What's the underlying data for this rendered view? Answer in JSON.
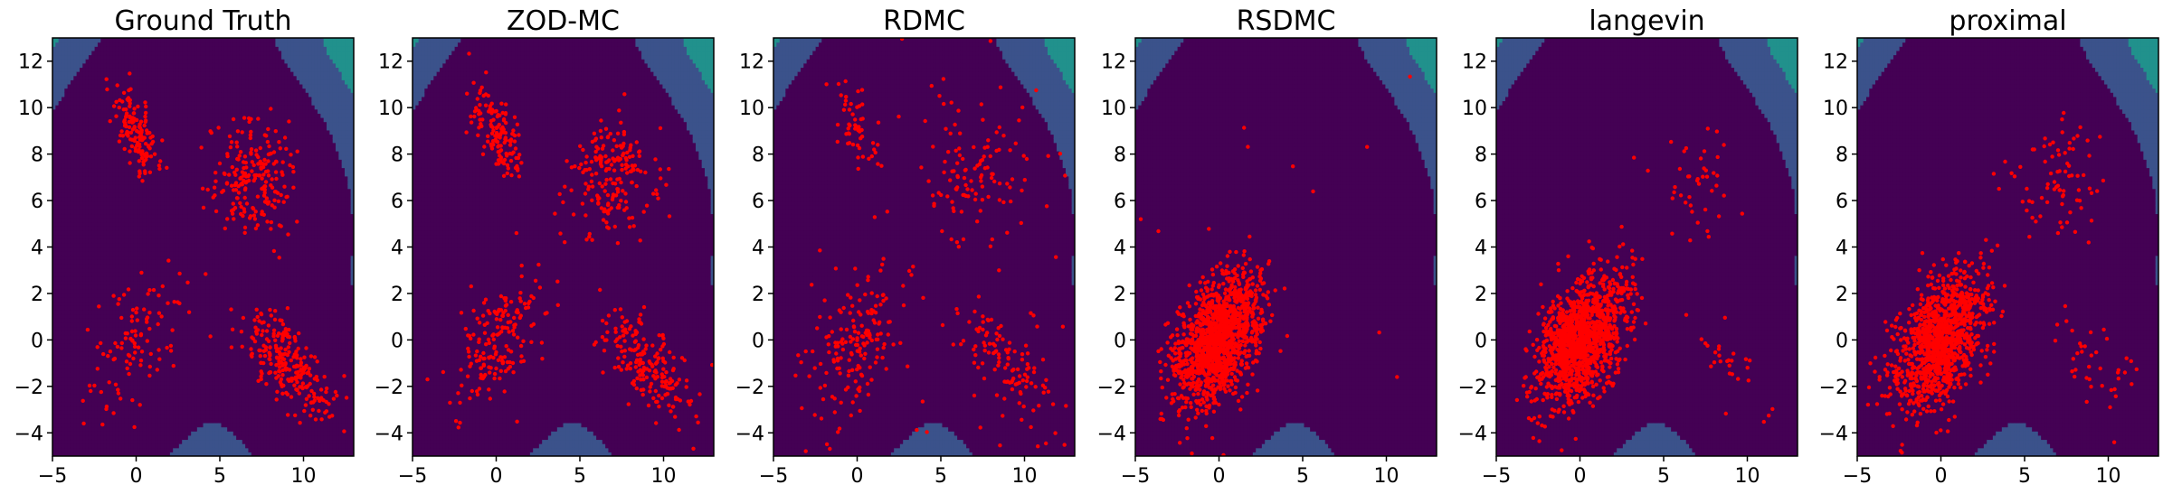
{
  "chart_data": {
    "type": "scatter",
    "description_kind": "contour+scatter small multiples",
    "xlim": [
      -5,
      13
    ],
    "ylim": [
      -5,
      13
    ],
    "xticks": [
      -5,
      0,
      5,
      10
    ],
    "yticks": [
      -4,
      -2,
      0,
      2,
      4,
      6,
      8,
      10,
      12
    ],
    "grid": false,
    "point_color": "#ff0000",
    "contour_colors": [
      "#440154",
      "#3b528b",
      "#21918c",
      "#5ec962",
      "#c8e020",
      "#fde725"
    ],
    "modes": [
      {
        "name": "upper-left",
        "x": 0,
        "y": 9
      },
      {
        "name": "upper-right",
        "x": 7,
        "y": 7
      },
      {
        "name": "lower-left",
        "x": 0,
        "y": 0
      },
      {
        "name": "lower-right",
        "x": 9,
        "y": -1
      }
    ],
    "panels": [
      {
        "title": "Ground Truth",
        "weights": [
          0.2,
          0.3,
          0.15,
          0.35
        ],
        "n_points": 700,
        "outliers": 0
      },
      {
        "title": "ZOD-MC",
        "weights": [
          0.2,
          0.27,
          0.25,
          0.28
        ],
        "n_points": 700,
        "outliers": 0
      },
      {
        "title": "RDMC",
        "weights": [
          0.12,
          0.25,
          0.38,
          0.25
        ],
        "n_points": 420,
        "outliers": 50
      },
      {
        "title": "RSDMC",
        "weights": [
          0.0,
          0.0,
          1.0,
          0.0
        ],
        "n_points": 1400,
        "outliers": 12
      },
      {
        "title": "langevin",
        "weights": [
          0.0,
          0.03,
          0.95,
          0.02
        ],
        "n_points": 1400,
        "outliers": 0
      },
      {
        "title": "proximal",
        "weights": [
          0.0,
          0.06,
          0.91,
          0.03
        ],
        "n_points": 1300,
        "outliers": 0
      }
    ]
  }
}
